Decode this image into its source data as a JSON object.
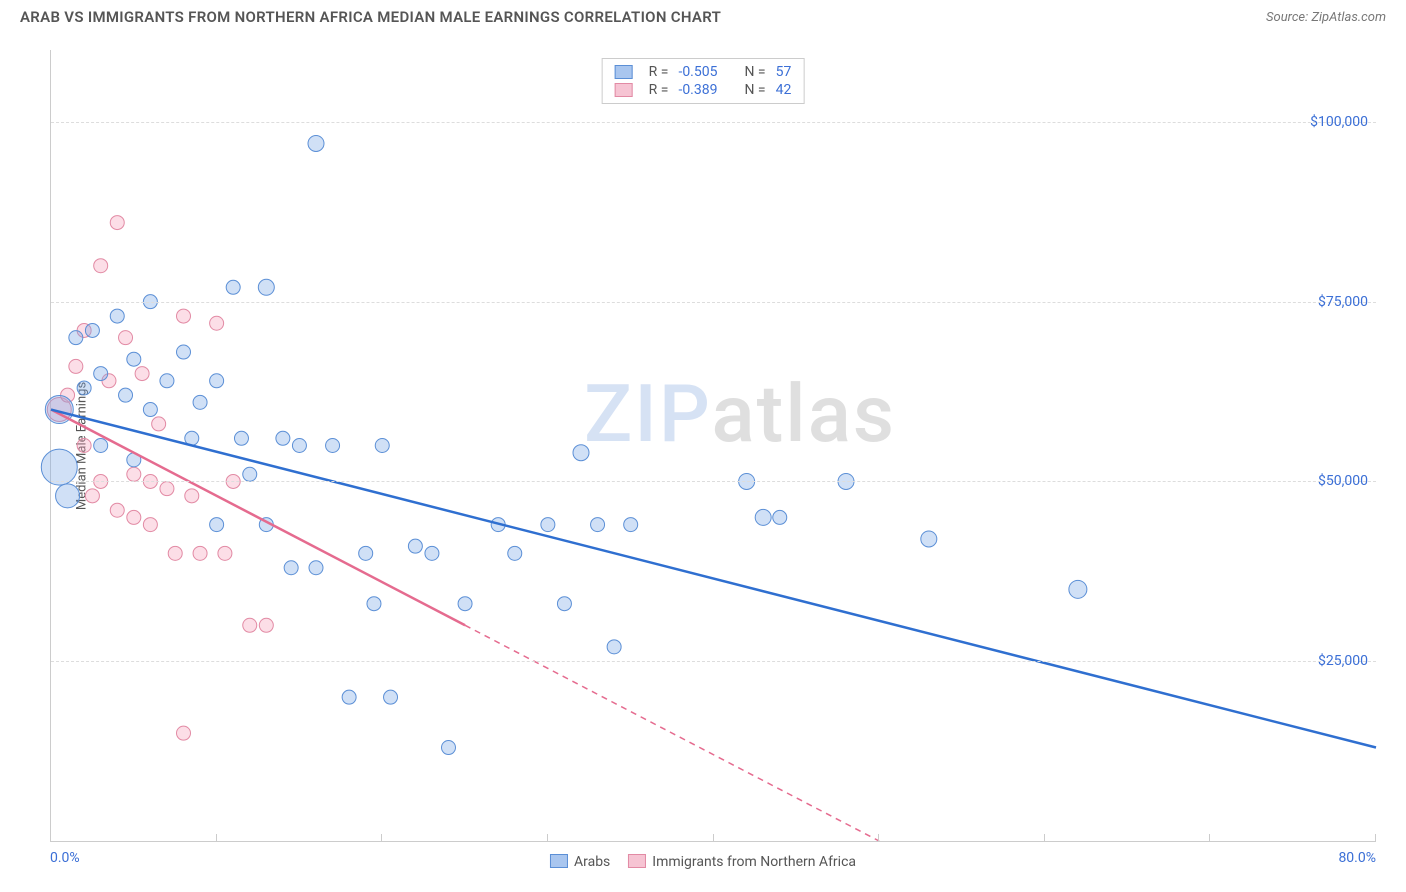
{
  "title": "ARAB VS IMMIGRANTS FROM NORTHERN AFRICA MEDIAN MALE EARNINGS CORRELATION CHART",
  "source_label": "Source: ",
  "source_name": "ZipAtlas.com",
  "watermark_a": "ZIP",
  "watermark_b": "atlas",
  "chart": {
    "type": "scatter",
    "ylabel": "Median Male Earnings",
    "xmin": 0.0,
    "xmax": 80.0,
    "ymin": 0,
    "ymax": 110000,
    "xaxis_min_label": "0.0%",
    "xaxis_max_label": "80.0%",
    "xtick_positions": [
      0,
      10,
      20,
      30,
      40,
      50,
      60,
      70,
      80
    ],
    "ytick_labels": [
      "$25,000",
      "$50,000",
      "$75,000",
      "$100,000"
    ],
    "ytick_values": [
      25000,
      50000,
      75000,
      100000
    ],
    "grid_color": "#dddddd",
    "background_color": "#ffffff",
    "axis_label_fontsize": 13,
    "tick_fontsize": 14,
    "tick_color": "#3b6fd6"
  },
  "series": {
    "arabs": {
      "label": "Arabs",
      "marker_fill": "rgba(120,165,230,0.35)",
      "marker_stroke": "#5b8fd6",
      "trend_color": "#2f6fd0",
      "trend_width": 2.5,
      "trend_style": "solid",
      "swatch_fill": "#a9c6ef",
      "swatch_border": "#5b8fd6",
      "R": "-0.505",
      "N": "57",
      "trend": {
        "x1": 0,
        "y1": 60000,
        "x2": 80,
        "y2": 13000
      },
      "points": [
        {
          "x": 0.5,
          "y": 52000,
          "r": 18
        },
        {
          "x": 0.5,
          "y": 60000,
          "r": 14
        },
        {
          "x": 1,
          "y": 48000,
          "r": 12
        },
        {
          "x": 1.5,
          "y": 70000,
          "r": 7
        },
        {
          "x": 2,
          "y": 63000,
          "r": 7
        },
        {
          "x": 2.5,
          "y": 71000,
          "r": 7
        },
        {
          "x": 3,
          "y": 65000,
          "r": 7
        },
        {
          "x": 3,
          "y": 55000,
          "r": 7
        },
        {
          "x": 4,
          "y": 73000,
          "r": 7
        },
        {
          "x": 4.5,
          "y": 62000,
          "r": 7
        },
        {
          "x": 5,
          "y": 67000,
          "r": 7
        },
        {
          "x": 5,
          "y": 53000,
          "r": 7
        },
        {
          "x": 6,
          "y": 75000,
          "r": 7
        },
        {
          "x": 6,
          "y": 60000,
          "r": 7
        },
        {
          "x": 7,
          "y": 64000,
          "r": 7
        },
        {
          "x": 8,
          "y": 68000,
          "r": 7
        },
        {
          "x": 8.5,
          "y": 56000,
          "r": 7
        },
        {
          "x": 9,
          "y": 61000,
          "r": 7
        },
        {
          "x": 10,
          "y": 44000,
          "r": 7
        },
        {
          "x": 10,
          "y": 64000,
          "r": 7
        },
        {
          "x": 11,
          "y": 77000,
          "r": 7
        },
        {
          "x": 11.5,
          "y": 56000,
          "r": 7
        },
        {
          "x": 12,
          "y": 51000,
          "r": 7
        },
        {
          "x": 13,
          "y": 77000,
          "r": 8
        },
        {
          "x": 13,
          "y": 44000,
          "r": 7
        },
        {
          "x": 14,
          "y": 56000,
          "r": 7
        },
        {
          "x": 14.5,
          "y": 38000,
          "r": 7
        },
        {
          "x": 15,
          "y": 55000,
          "r": 7
        },
        {
          "x": 16,
          "y": 97000,
          "r": 8
        },
        {
          "x": 16,
          "y": 38000,
          "r": 7
        },
        {
          "x": 17,
          "y": 55000,
          "r": 7
        },
        {
          "x": 18,
          "y": 20000,
          "r": 7
        },
        {
          "x": 19,
          "y": 40000,
          "r": 7
        },
        {
          "x": 19.5,
          "y": 33000,
          "r": 7
        },
        {
          "x": 20,
          "y": 55000,
          "r": 7
        },
        {
          "x": 20.5,
          "y": 20000,
          "r": 7
        },
        {
          "x": 22,
          "y": 41000,
          "r": 7
        },
        {
          "x": 23,
          "y": 40000,
          "r": 7
        },
        {
          "x": 24,
          "y": 13000,
          "r": 7
        },
        {
          "x": 25,
          "y": 33000,
          "r": 7
        },
        {
          "x": 27,
          "y": 44000,
          "r": 7
        },
        {
          "x": 28,
          "y": 40000,
          "r": 7
        },
        {
          "x": 30,
          "y": 44000,
          "r": 7
        },
        {
          "x": 31,
          "y": 33000,
          "r": 7
        },
        {
          "x": 32,
          "y": 54000,
          "r": 8
        },
        {
          "x": 33,
          "y": 44000,
          "r": 7
        },
        {
          "x": 34,
          "y": 27000,
          "r": 7
        },
        {
          "x": 35,
          "y": 44000,
          "r": 7
        },
        {
          "x": 42,
          "y": 50000,
          "r": 8
        },
        {
          "x": 43,
          "y": 45000,
          "r": 8
        },
        {
          "x": 44,
          "y": 45000,
          "r": 7
        },
        {
          "x": 48,
          "y": 50000,
          "r": 8
        },
        {
          "x": 53,
          "y": 42000,
          "r": 8
        },
        {
          "x": 62,
          "y": 35000,
          "r": 9
        }
      ]
    },
    "immigrants": {
      "label": "Immigrants from Northern Africa",
      "marker_fill": "rgba(245,160,185,0.35)",
      "marker_stroke": "#e28aa4",
      "trend_color": "#e56b8f",
      "trend_width": 2.5,
      "trend_style_solid_until_x": 25,
      "trend_dash": "6,5",
      "swatch_fill": "#f6c4d3",
      "swatch_border": "#e28aa4",
      "R": "-0.389",
      "N": "42",
      "trend": {
        "x1": 0,
        "y1": 60000,
        "x2": 50,
        "y2": 0
      },
      "points": [
        {
          "x": 0.5,
          "y": 60000,
          "r": 12
        },
        {
          "x": 1,
          "y": 62000,
          "r": 7
        },
        {
          "x": 1.5,
          "y": 66000,
          "r": 7
        },
        {
          "x": 2,
          "y": 71000,
          "r": 7
        },
        {
          "x": 2,
          "y": 55000,
          "r": 7
        },
        {
          "x": 2.5,
          "y": 48000,
          "r": 7
        },
        {
          "x": 3,
          "y": 80000,
          "r": 7
        },
        {
          "x": 3,
          "y": 50000,
          "r": 7
        },
        {
          "x": 3.5,
          "y": 64000,
          "r": 7
        },
        {
          "x": 4,
          "y": 86000,
          "r": 7
        },
        {
          "x": 4,
          "y": 46000,
          "r": 7
        },
        {
          "x": 4.5,
          "y": 70000,
          "r": 7
        },
        {
          "x": 5,
          "y": 51000,
          "r": 7
        },
        {
          "x": 5,
          "y": 45000,
          "r": 7
        },
        {
          "x": 5.5,
          "y": 65000,
          "r": 7
        },
        {
          "x": 6,
          "y": 50000,
          "r": 7
        },
        {
          "x": 6,
          "y": 44000,
          "r": 7
        },
        {
          "x": 6.5,
          "y": 58000,
          "r": 7
        },
        {
          "x": 7,
          "y": 49000,
          "r": 7
        },
        {
          "x": 7.5,
          "y": 40000,
          "r": 7
        },
        {
          "x": 8,
          "y": 73000,
          "r": 7
        },
        {
          "x": 8,
          "y": 15000,
          "r": 7
        },
        {
          "x": 8.5,
          "y": 48000,
          "r": 7
        },
        {
          "x": 9,
          "y": 40000,
          "r": 7
        },
        {
          "x": 10,
          "y": 72000,
          "r": 7
        },
        {
          "x": 10.5,
          "y": 40000,
          "r": 7
        },
        {
          "x": 11,
          "y": 50000,
          "r": 7
        },
        {
          "x": 12,
          "y": 30000,
          "r": 7
        },
        {
          "x": 13,
          "y": 30000,
          "r": 7
        }
      ]
    }
  },
  "legend_labels": {
    "R": "R =",
    "N": "N ="
  }
}
